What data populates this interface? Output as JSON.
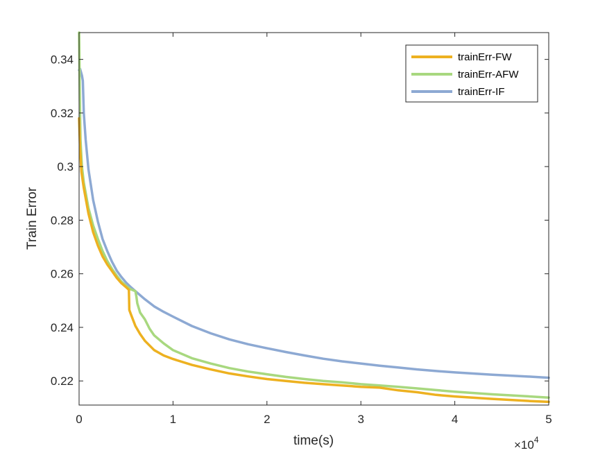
{
  "chart_data": {
    "type": "line",
    "xlabel": "time(s)",
    "ylabel": "Train Error",
    "x_exponent_label": "×10",
    "x_exponent_power": "4",
    "xlim": [
      0,
      50000
    ],
    "ylim": [
      0.211,
      0.35
    ],
    "x_ticks": [
      0,
      10000,
      20000,
      30000,
      40000,
      50000
    ],
    "x_tick_labels": [
      "0",
      "1",
      "2",
      "3",
      "4",
      "5"
    ],
    "y_ticks": [
      0.22,
      0.24,
      0.26,
      0.28,
      0.3,
      0.32,
      0.34
    ],
    "y_tick_labels": [
      "0.22",
      "0.24",
      "0.26",
      "0.28",
      "0.3",
      "0.32",
      "0.34"
    ],
    "grid": false,
    "legend_position": "top-right",
    "series": [
      {
        "name": "trainErr-FW",
        "color": "#EDB120",
        "x": [
          0,
          100,
          250,
          500,
          1000,
          1500,
          2000,
          2500,
          3000,
          3500,
          4000,
          4500,
          5000,
          5300,
          5350,
          5500,
          6000,
          6500,
          7000,
          8000,
          9000,
          10000,
          12000,
          14000,
          16000,
          18000,
          20000,
          22000,
          24000,
          26000,
          28000,
          30000,
          32000,
          34000,
          36000,
          38000,
          40000,
          44000,
          48000,
          50000
        ],
        "y": [
          0.318,
          0.307,
          0.298,
          0.292,
          0.2825,
          0.2755,
          0.2705,
          0.2665,
          0.2635,
          0.261,
          0.2585,
          0.2565,
          0.255,
          0.254,
          0.2465,
          0.245,
          0.2405,
          0.2375,
          0.235,
          0.2315,
          0.2295,
          0.2282,
          0.226,
          0.2243,
          0.2228,
          0.2217,
          0.2207,
          0.22,
          0.2193,
          0.2188,
          0.2183,
          0.2178,
          0.2175,
          0.2165,
          0.2158,
          0.2148,
          0.2142,
          0.2133,
          0.2125,
          0.2122
        ]
      },
      {
        "name": "trainErr-AFW",
        "color": "#A8D87F",
        "x": [
          0,
          30,
          80,
          150,
          300,
          500,
          1000,
          1500,
          2000,
          2500,
          3000,
          3500,
          4000,
          4500,
          5000,
          5500,
          6000,
          6100,
          6200,
          6500,
          7000,
          7500,
          8000,
          9000,
          10000,
          12000,
          14000,
          16000,
          18000,
          20000,
          22000,
          24000,
          26000,
          28000,
          30000,
          32000,
          34000,
          36000,
          38000,
          40000,
          44000,
          48000,
          50000
        ],
        "y": [
          0.35,
          0.342,
          0.325,
          0.31,
          0.3,
          0.294,
          0.2845,
          0.278,
          0.273,
          0.2685,
          0.2648,
          0.2618,
          0.2593,
          0.2571,
          0.2555,
          0.2542,
          0.2535,
          0.2515,
          0.249,
          0.2455,
          0.243,
          0.2395,
          0.237,
          0.234,
          0.2315,
          0.2285,
          0.2265,
          0.2248,
          0.2235,
          0.2225,
          0.2215,
          0.2207,
          0.22,
          0.2195,
          0.2188,
          0.2183,
          0.2178,
          0.2172,
          0.2166,
          0.216,
          0.215,
          0.2142,
          0.2138
        ]
      },
      {
        "name": "trainErr-IF",
        "color": "#8DA9D3",
        "x": [
          0,
          100,
          300,
          400,
          500,
          700,
          1000,
          1500,
          2000,
          2500,
          3000,
          3500,
          4000,
          4500,
          5000,
          5500,
          6000,
          7000,
          8000,
          9000,
          10000,
          12000,
          14000,
          16000,
          18000,
          20000,
          22000,
          24000,
          26000,
          28000,
          30000,
          32000,
          34000,
          36000,
          38000,
          40000,
          44000,
          48000,
          50000
        ],
        "y": [
          0.336,
          0.3365,
          0.334,
          0.332,
          0.32,
          0.31,
          0.299,
          0.2875,
          0.2795,
          0.273,
          0.2685,
          0.2645,
          0.2612,
          0.2588,
          0.2567,
          0.255,
          0.2535,
          0.2505,
          0.2478,
          0.2458,
          0.244,
          0.2405,
          0.2378,
          0.2355,
          0.2337,
          0.2322,
          0.2308,
          0.2295,
          0.2283,
          0.2273,
          0.2265,
          0.2257,
          0.225,
          0.2243,
          0.2237,
          0.2232,
          0.2223,
          0.2216,
          0.2212
        ]
      }
    ]
  }
}
